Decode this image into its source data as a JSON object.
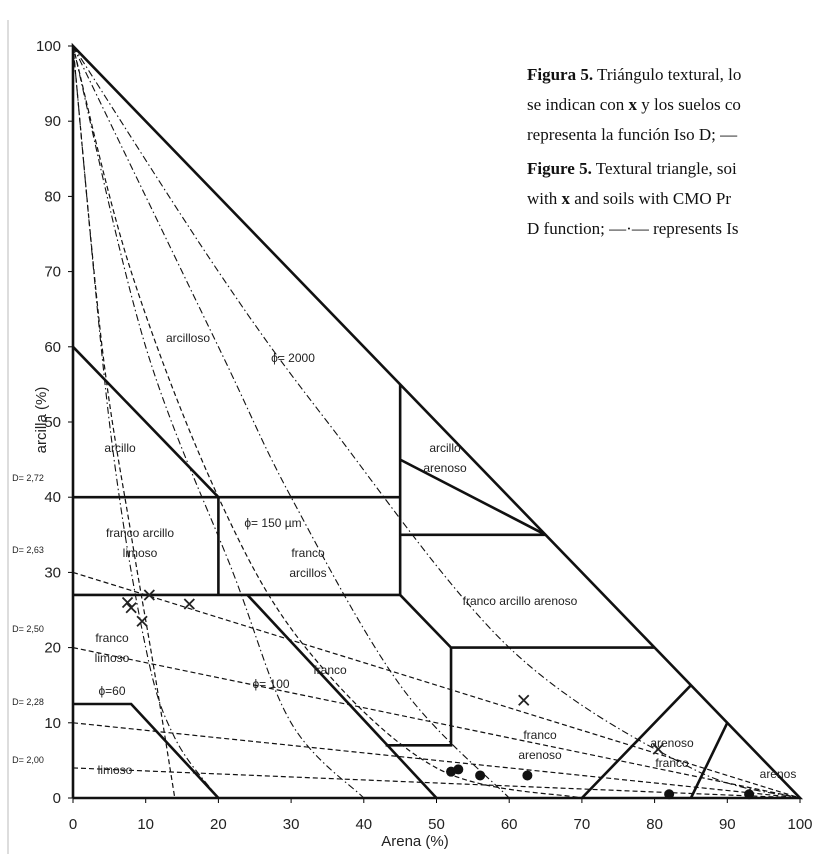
{
  "chart_data": {
    "type": "scatter",
    "x_label": "Arena (%)",
    "y_label": "arcilla (%)",
    "xlim": [
      0,
      100
    ],
    "ylim": [
      0,
      100
    ],
    "xticks": [
      0,
      10,
      20,
      30,
      40,
      50,
      60,
      70,
      80,
      90,
      100
    ],
    "yticks": [
      0,
      10,
      20,
      30,
      40,
      50,
      60,
      70,
      80,
      90,
      100
    ],
    "series": [
      {
        "marker": "x",
        "color": "#222222",
        "x": [
          7.5,
          8,
          10.5,
          9.5,
          16,
          62,
          80.5
        ],
        "values": [
          26,
          25.3,
          27,
          23.5,
          25.8,
          13,
          6.5
        ]
      },
      {
        "marker": "o",
        "color": "#111111",
        "x": [
          52,
          53,
          56,
          62.5,
          82,
          93
        ],
        "values": [
          3.5,
          3.8,
          3,
          3,
          0.5,
          0.5
        ]
      }
    ],
    "boundaries": [
      {
        "x": [
          0,
          100,
          0,
          0
        ],
        "y": [
          0,
          0,
          100,
          0
        ]
      },
      {
        "x": [
          0,
          20
        ],
        "y": [
          60,
          40
        ]
      },
      {
        "x": [
          0,
          45
        ],
        "y": [
          40,
          40
        ]
      },
      {
        "x": [
          20,
          20
        ],
        "y": [
          40,
          27
        ]
      },
      {
        "x": [
          0,
          45
        ],
        "y": [
          27,
          27
        ]
      },
      {
        "x": [
          45,
          45
        ],
        "y": [
          55,
          27
        ]
      },
      {
        "x": [
          45,
          65
        ],
        "y": [
          35,
          35
        ]
      },
      {
        "x": [
          45,
          65
        ],
        "y": [
          45,
          35
        ]
      },
      {
        "x": [
          45,
          52,
          80
        ],
        "y": [
          27,
          20,
          20
        ]
      },
      {
        "x": [
          52,
          52,
          43
        ],
        "y": [
          20,
          7,
          7
        ]
      },
      {
        "x": [
          24,
          50
        ],
        "y": [
          27,
          0
        ]
      },
      {
        "x": [
          0,
          8,
          20
        ],
        "y": [
          12.5,
          12.5,
          0
        ]
      },
      {
        "x": [
          70,
          85
        ],
        "y": [
          0,
          15
        ]
      },
      {
        "x": [
          85,
          90
        ],
        "y": [
          0,
          10
        ]
      }
    ],
    "iso_d": [
      {
        "x": [
          0,
          100
        ],
        "y": [
          30,
          0
        ]
      },
      {
        "x": [
          0,
          100
        ],
        "y": [
          20,
          0
        ]
      },
      {
        "x": [
          0,
          100
        ],
        "y": [
          10,
          0
        ]
      },
      {
        "x": [
          0,
          100
        ],
        "y": [
          4,
          0
        ]
      },
      {
        "x": [
          0,
          4,
          8,
          11,
          14
        ],
        "y": [
          100,
          60,
          35,
          18,
          0
        ]
      },
      {
        "x": [
          0,
          8,
          20,
          32,
          50,
          70
        ],
        "y": [
          100,
          70,
          40,
          20,
          4,
          0
        ]
      }
    ],
    "phi": [
      {
        "x": [
          0,
          5,
          10,
          14,
          20
        ],
        "y": [
          100,
          50,
          20,
          8,
          0
        ]
      },
      {
        "x": [
          0,
          10,
          22,
          30,
          40
        ],
        "y": [
          100,
          60,
          30,
          10,
          0
        ]
      },
      {
        "x": [
          0,
          20,
          30,
          45,
          60
        ],
        "y": [
          100,
          60,
          40,
          15,
          0
        ]
      },
      {
        "x": [
          0,
          20,
          35,
          60,
          85,
          100
        ],
        "y": [
          100,
          70,
          50,
          20,
          4,
          0
        ]
      }
    ],
    "annotations": [
      [
        "arcilloso"
      ],
      [
        "arcillo"
      ],
      [
        "arcillo",
        "arenoso"
      ],
      [
        "franco arcillo",
        "limoso"
      ],
      [
        "ϕ= 150 µm"
      ],
      [
        "franco",
        "arcillos"
      ],
      [
        "franco arcillo arenoso"
      ],
      [
        "franco",
        "limoso"
      ],
      [
        "franco"
      ],
      [
        "franco",
        "arenoso"
      ],
      [
        "arenoso"
      ],
      [
        "franco"
      ],
      [
        "arenos"
      ],
      [
        "limoso"
      ],
      [
        "ϕ= 2000"
      ],
      [
        "ϕ= 100"
      ],
      [
        "ϕ=60"
      ],
      [
        "D= 2,72"
      ],
      [
        "D= 2,63"
      ],
      [
        "D= 2,50"
      ],
      [
        "D= 2,28"
      ],
      [
        "D= 2,00"
      ]
    ]
  },
  "caption": [
    [
      {
        "b": "Figura 5."
      },
      {
        "t": " Triángulo textural, lo"
      }
    ],
    [
      {
        "t": "se indican con "
      },
      {
        "b": "x"
      },
      {
        "t": " y los suelos co"
      }
    ],
    [
      {
        "t": "representa la función Iso D; —"
      }
    ],
    [
      {
        "b": "Figure 5."
      },
      {
        "t": " Textural triangle, soi"
      }
    ],
    [
      {
        "t": "with "
      },
      {
        "b": "x"
      },
      {
        "t": " and soils with CMO Pr"
      }
    ],
    [
      {
        "t": "D function; —·— represents Is"
      }
    ]
  ]
}
